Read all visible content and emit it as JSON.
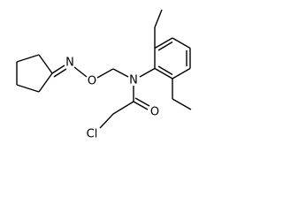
{
  "atoms": {
    "oxime_n": "N",
    "oxime_o": "O",
    "amide_n": "N",
    "carbonyl_o": "O",
    "chlorine": "Cl"
  }
}
